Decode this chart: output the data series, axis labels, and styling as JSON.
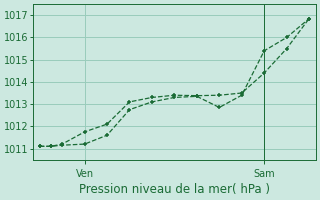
{
  "title": "Pression niveau de la mer( hPa )",
  "bg_color": "#cce8e0",
  "grid_color": "#99ccbb",
  "line_color": "#1a6b35",
  "ylim": [
    1010.5,
    1017.5
  ],
  "yticks": [
    1011,
    1012,
    1013,
    1014,
    1015,
    1016,
    1017
  ],
  "xtick_labels": [
    "Ven",
    "Sam"
  ],
  "xtick_positions": [
    2,
    10
  ],
  "xlim": [
    -0.3,
    12.3
  ],
  "line1_x": [
    0,
    0.5,
    1,
    2,
    3,
    4,
    5,
    6,
    7,
    8,
    9,
    10,
    11,
    12
  ],
  "line1_y": [
    1011.1,
    1011.1,
    1011.15,
    1011.2,
    1011.6,
    1012.75,
    1013.1,
    1013.3,
    1013.35,
    1012.85,
    1013.4,
    1015.4,
    1016.0,
    1016.85
  ],
  "line2_x": [
    0,
    0.5,
    1,
    2,
    3,
    4,
    5,
    6,
    7,
    8,
    9,
    10,
    11,
    12
  ],
  "line2_y": [
    1011.1,
    1011.1,
    1011.2,
    1011.75,
    1012.1,
    1013.1,
    1013.3,
    1013.4,
    1013.38,
    1013.4,
    1013.5,
    1014.4,
    1015.5,
    1016.85
  ],
  "vline_x": 10,
  "xlabel_fontsize": 8.5,
  "tick_fontsize": 7,
  "marker_size": 3.5,
  "line_width": 0.9
}
